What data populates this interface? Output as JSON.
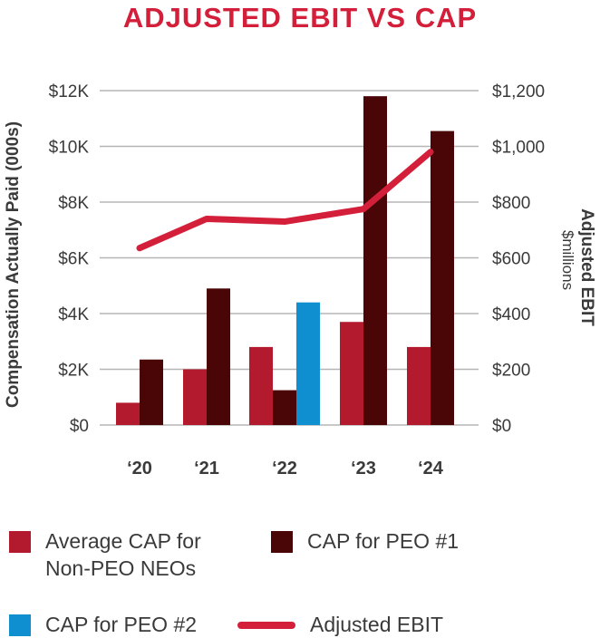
{
  "chart_data": {
    "type": "bar+line",
    "title": "ADJUSTED EBIT VS CAP",
    "categories": [
      "‘20",
      "‘21",
      "‘22",
      "‘23",
      "‘24"
    ],
    "left_axis": {
      "label": "Compensation Actually Paid (000s)",
      "ticks": [
        0,
        2,
        4,
        6,
        8,
        10,
        12
      ],
      "tick_labels": [
        "$0",
        "$2K",
        "$4K",
        "$6K",
        "$8K",
        "$10K",
        "$12K"
      ],
      "ylim": [
        0,
        12
      ]
    },
    "right_axis": {
      "label": "Adjusted EBIT",
      "sublabel": "$millions",
      "ticks": [
        0,
        200,
        400,
        600,
        800,
        1000,
        1200
      ],
      "tick_labels": [
        "$0",
        "$200",
        "$400",
        "$600",
        "$800",
        "$1,000",
        "$1,200"
      ],
      "ylim": [
        0,
        1200
      ]
    },
    "bar_groups": [
      {
        "category": "‘20",
        "bars": [
          {
            "series": "avg_neo",
            "value": 0.8
          },
          {
            "series": "peo1",
            "value": 2.35
          }
        ]
      },
      {
        "category": "‘21",
        "bars": [
          {
            "series": "avg_neo",
            "value": 2.0
          },
          {
            "series": "peo1",
            "value": 4.9
          }
        ]
      },
      {
        "category": "‘22",
        "bars": [
          {
            "series": "avg_neo",
            "value": 2.8
          },
          {
            "series": "peo1",
            "value": 1.25
          },
          {
            "series": "peo2",
            "value": 4.4
          }
        ]
      },
      {
        "category": "‘23",
        "bars": [
          {
            "series": "avg_neo",
            "value": 3.7
          },
          {
            "series": "peo1",
            "value": 11.8
          }
        ]
      },
      {
        "category": "‘24",
        "bars": [
          {
            "series": "avg_neo",
            "value": 2.8
          },
          {
            "series": "peo1",
            "value": 10.55
          }
        ]
      }
    ],
    "line_series": {
      "name": "Adjusted EBIT",
      "values": [
        635,
        740,
        730,
        775,
        980
      ]
    },
    "series": [
      {
        "key": "avg_neo",
        "name": "Average CAP for Non-PEO NEOs",
        "color": "#b31a2e"
      },
      {
        "key": "peo1",
        "name": "CAP for PEO #1",
        "color": "#4a0507"
      },
      {
        "key": "peo2",
        "name": "CAP for PEO #2",
        "color": "#0f8fd0"
      },
      {
        "key": "ebit",
        "name": "Adjusted EBIT",
        "color": "#d41f3a"
      }
    ]
  },
  "legend": {
    "avg_neo": "Average CAP for\nNon-PEO NEOs",
    "peo1": "CAP for PEO #1",
    "peo2": "CAP for PEO #2",
    "ebit": "Adjusted EBIT"
  },
  "colors": {
    "title": "#d41f3a",
    "grid": "#b5b5b5",
    "text": "#3a3a3a"
  }
}
